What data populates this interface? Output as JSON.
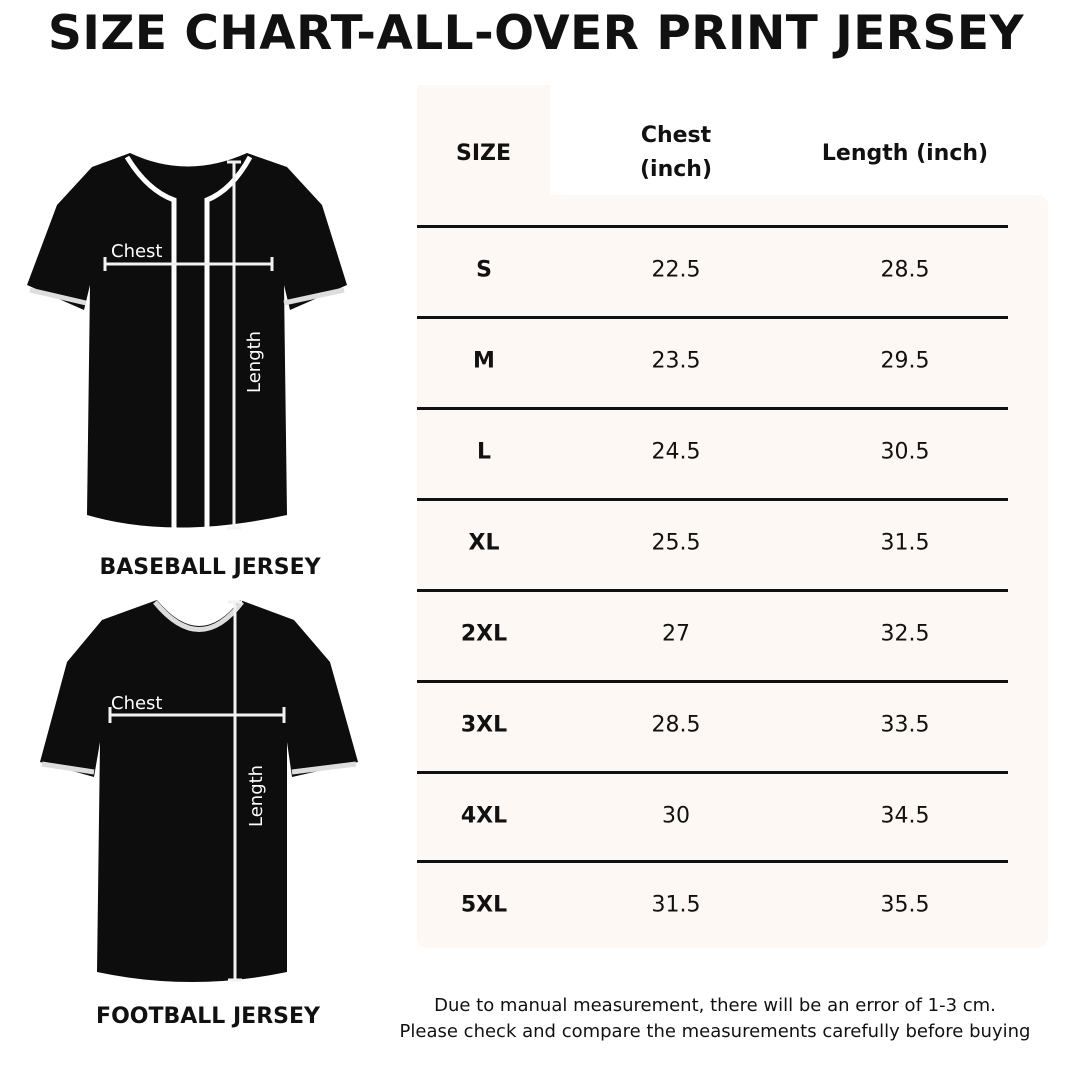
{
  "title": "SIZE CHART-ALL-OVER PRINT JERSEY",
  "jerseys": [
    {
      "label": "BASEBALL JERSEY",
      "chest_label": "Chest",
      "length_label": "Length"
    },
    {
      "label": "FOOTBALL JERSEY",
      "chest_label": "Chest",
      "length_label": "Length"
    }
  ],
  "table": {
    "headers": [
      "SIZE",
      "Chest (inch)",
      "Length (inch)"
    ],
    "rows": [
      {
        "size": "S",
        "chest": "22.5",
        "length": "28.5"
      },
      {
        "size": "M",
        "chest": "23.5",
        "length": "29.5"
      },
      {
        "size": "L",
        "chest": "24.5",
        "length": "30.5"
      },
      {
        "size": "XL",
        "chest": "25.5",
        "length": "31.5"
      },
      {
        "size": "2XL",
        "chest": "27",
        "length": "32.5"
      },
      {
        "size": "3XL",
        "chest": "28.5",
        "length": "33.5"
      },
      {
        "size": "4XL",
        "chest": "30",
        "length": "34.5"
      },
      {
        "size": "5XL",
        "chest": "31.5",
        "length": "35.5"
      }
    ]
  },
  "note": [
    "Due to manual measurement, there will be an error of 1-3 cm.",
    "Please check and compare the measurements carefully before buying"
  ],
  "colors": {
    "table_bg": "#fdf8f3",
    "jersey": "#0d0d0d",
    "trim": "#ffffff"
  }
}
